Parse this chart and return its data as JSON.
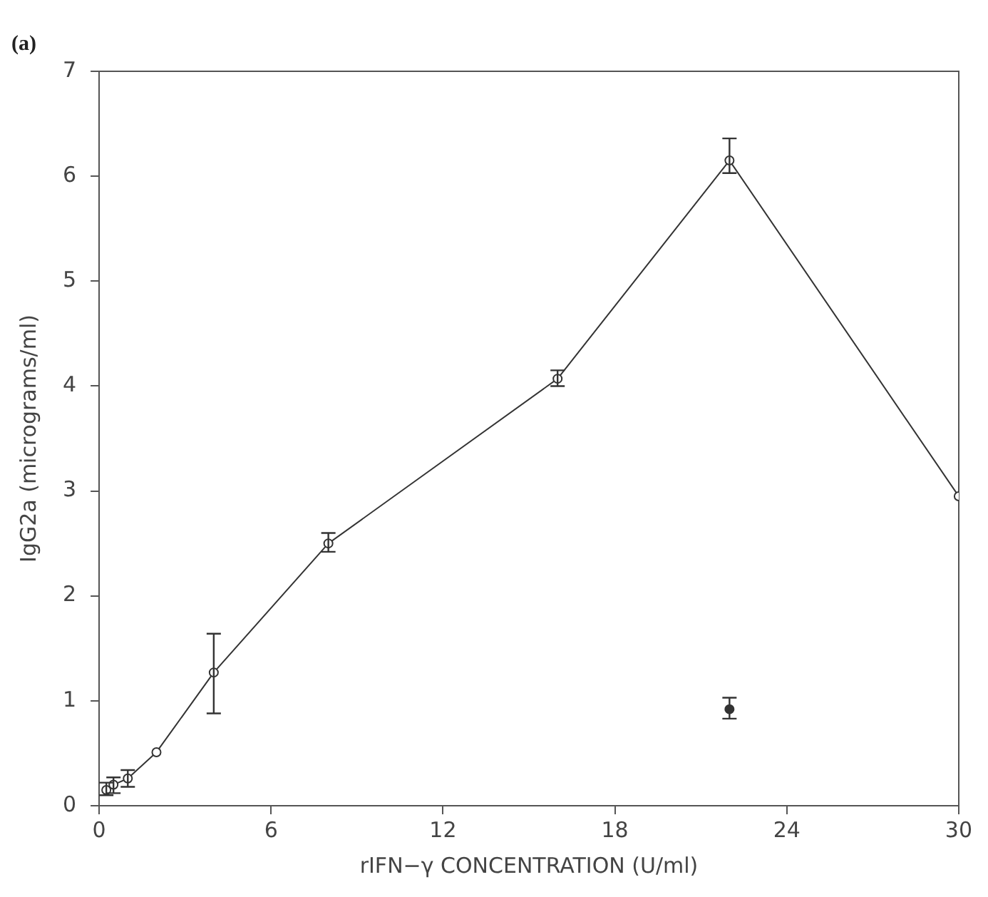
{
  "chart_data": {
    "type": "line",
    "title": "(a)",
    "xlabel": "rIFN−γ CONCENTRATION (U/ml)",
    "ylabel": "IgG2a (micrograms/ml)",
    "xlim": [
      0,
      30
    ],
    "xticks": [
      0,
      6,
      12,
      18,
      24,
      30
    ],
    "ylim": [
      0,
      7
    ],
    "yticks": [
      0,
      1,
      2,
      3,
      4,
      5,
      6,
      7
    ],
    "grid": false,
    "legend": false,
    "marker": "circle",
    "line_style": "solid",
    "series": [
      {
        "color": "#333333",
        "x": [
          0.25,
          0.5,
          1,
          2,
          4,
          8,
          16,
          22,
          30
        ],
        "values": [
          0.15,
          0.2,
          0.26,
          0.51,
          1.27,
          2.5,
          4.07,
          6.15,
          2.95
        ],
        "errors": [
          [
            0.1,
            0.22
          ],
          [
            0.12,
            0.27
          ],
          [
            0.18,
            0.34
          ],
          null,
          [
            0.88,
            1.64
          ],
          [
            2.42,
            2.6
          ],
          [
            4.0,
            4.15
          ],
          [
            6.03,
            6.36
          ],
          null
        ]
      },
      {
        "type": "scatter",
        "color": "#333333",
        "x": [
          22
        ],
        "values": [
          0.92
        ],
        "errors": [
          [
            0.83,
            1.03
          ]
        ]
      }
    ]
  }
}
